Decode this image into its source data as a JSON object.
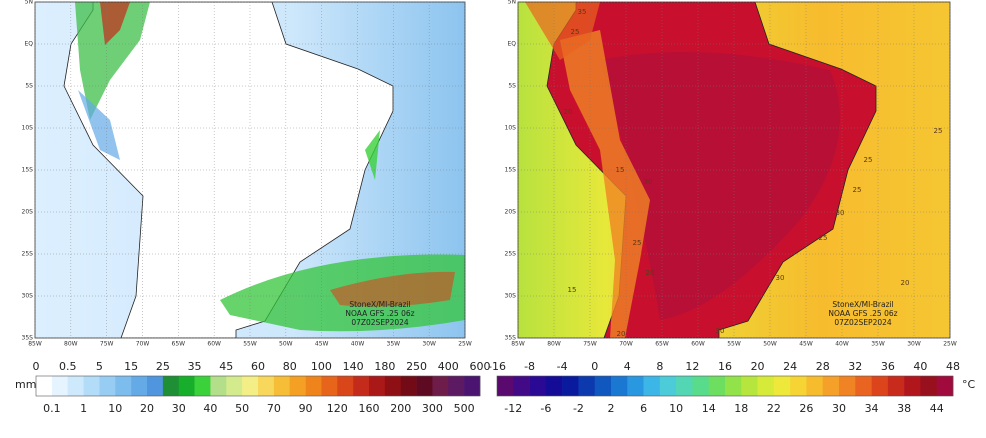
{
  "left_map": {
    "lat_labels": [
      "5N",
      "EQ",
      "5S",
      "10S",
      "15S",
      "20S",
      "25S",
      "30S",
      "35S"
    ],
    "lon_labels": [
      "85W",
      "80W",
      "75W",
      "70W",
      "65W",
      "60W",
      "55W",
      "50W",
      "45W",
      "40W",
      "35W",
      "30W",
      "25W"
    ],
    "credit": [
      "StoneX/MI-Brazil",
      "NOAA GFS .25 06z",
      "07Z02SEP2024"
    ]
  },
  "left_colorbar": {
    "unit": "mm",
    "top_labels": [
      0,
      0.5,
      5,
      15,
      25,
      35,
      45,
      60,
      80,
      100,
      140,
      180,
      250,
      400,
      600
    ],
    "bottom_labels": [
      0.1,
      1,
      10,
      20,
      30,
      40,
      50,
      70,
      90,
      120,
      160,
      200,
      300,
      500
    ],
    "colors": [
      "#ffffff",
      "#e6f4ff",
      "#cde9fb",
      "#b3dcf8",
      "#97cdf3",
      "#7dbdee",
      "#63aae7",
      "#4f96df",
      "#1e8f34",
      "#16ae2a",
      "#3bd13b",
      "#b3de8a",
      "#d3eb8d",
      "#f3ef86",
      "#f7d75c",
      "#f6bd36",
      "#f3a024",
      "#ef841c",
      "#e6651b",
      "#d8461a",
      "#c42b1a",
      "#aa1818",
      "#8e1014",
      "#730b16",
      "#5e0a22",
      "#6e1c4a",
      "#5c1a62",
      "#4a1470"
    ]
  },
  "right_map": {
    "lat_labels": [
      "5N",
      "EQ",
      "5S",
      "10S",
      "15S",
      "20S",
      "25S",
      "30S",
      "35S"
    ],
    "lon_labels": [
      "85W",
      "80W",
      "75W",
      "70W",
      "65W",
      "60W",
      "55W",
      "50W",
      "45W",
      "40W",
      "35W",
      "30W",
      "25W"
    ],
    "credit": [
      "StoneX/MI-Brazil",
      "NOAA GFS .25 06z",
      "07Z02SEP2024"
    ],
    "contour_labels": [
      35,
      25,
      20,
      15,
      30,
      25,
      20,
      15,
      20,
      30,
      25,
      25,
      25,
      30,
      20,
      25,
      30
    ]
  },
  "right_colorbar": {
    "unit": "°C",
    "top_labels": [
      -16,
      -8,
      -4,
      0,
      4,
      8,
      12,
      16,
      20,
      24,
      28,
      32,
      36,
      40,
      48
    ],
    "bottom_labels": [
      -12,
      -6,
      -2,
      2,
      6,
      10,
      14,
      18,
      22,
      26,
      30,
      34,
      38,
      44
    ],
    "colors": [
      "#5a0a6e",
      "#420a86",
      "#2a0a94",
      "#140c96",
      "#0a1a9e",
      "#0c3aae",
      "#1058c0",
      "#1a78d2",
      "#2a98e0",
      "#3cb6e6",
      "#4cccd8",
      "#52d6b4",
      "#58dc8c",
      "#6ede60",
      "#92e24a",
      "#b6e63e",
      "#d6ea3a",
      "#eee83a",
      "#f6d434",
      "#f7bc2e",
      "#f5a028",
      "#f08424",
      "#e86420",
      "#dc441c",
      "#c82a1c",
      "#b0161c",
      "#98101e",
      "#a00a3c"
    ]
  }
}
